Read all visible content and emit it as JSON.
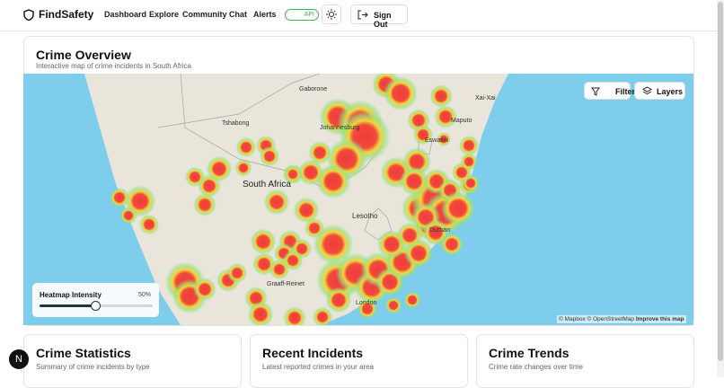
{
  "header": {
    "brand": "FindSafety",
    "nav": [
      "Dashboard",
      "Explore",
      "Community",
      "Chat",
      "Alerts"
    ],
    "api_badge": "API",
    "sign_out": "Sign Out"
  },
  "overview": {
    "title": "Crime Overview",
    "subtitle": "Interactive map of crime incidents in South Africa",
    "map": {
      "filter": "Filter",
      "layers": "Layers",
      "labels": [
        "Gaborone",
        "Xai-Xai",
        "Tshabong",
        "Maputo",
        "Johannesburg",
        "Eswatini",
        "South Africa",
        "Lesotho",
        "Durban",
        "Graaff-Reinet",
        "London"
      ],
      "attribution": "© Mapbox © OpenStreetMap",
      "improve": "Improve this map"
    },
    "heatmap": {
      "label": "Heatmap Intensity",
      "value_label": "50%"
    }
  },
  "cards": [
    {
      "title": "Crime Statistics",
      "subtitle": "Summary of crime incidents by type"
    },
    {
      "title": "Recent Incidents",
      "subtitle": "Latest reported crimes in your area"
    },
    {
      "title": "Crime Trends",
      "subtitle": "Crime rate changes over time"
    }
  ],
  "avatar": "N"
}
